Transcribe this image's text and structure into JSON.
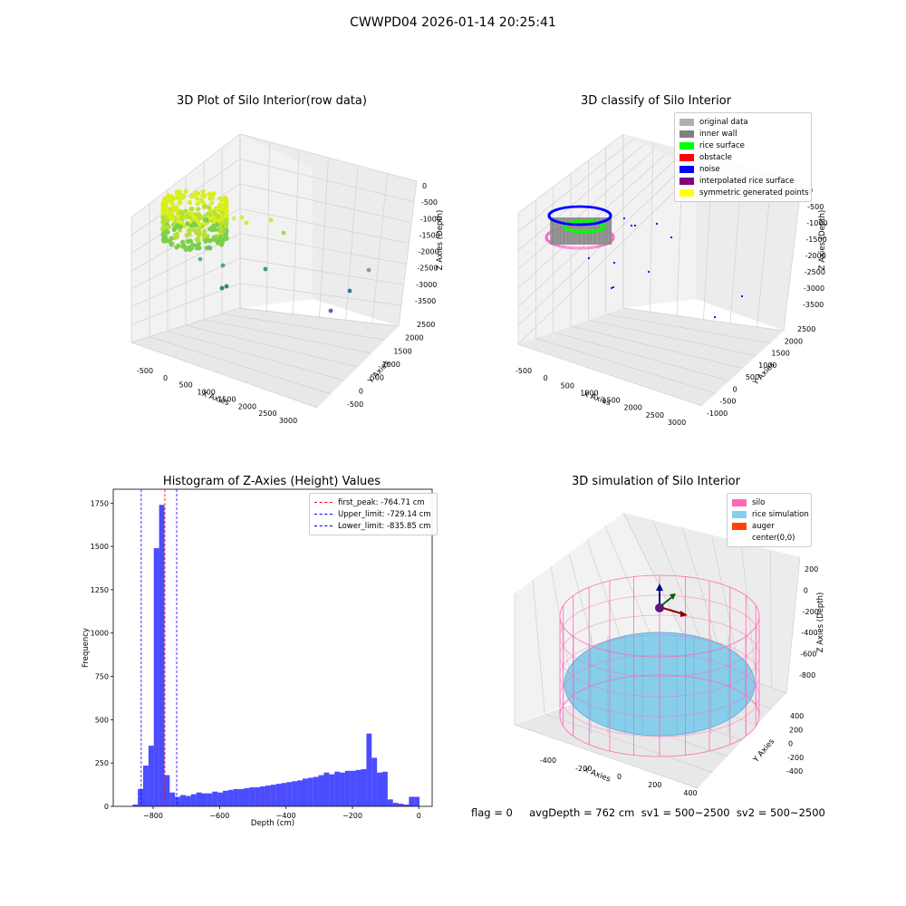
{
  "suptitle": "CWWPD04 2026-01-14 20:25:41",
  "plots": {
    "raw": {
      "title": "3D Plot of Silo Interior(row data)",
      "xlabel": "X Axies",
      "ylabel": "Y Axies",
      "zlabel": "Z Axies (Depth)",
      "xticks": [
        "-500",
        "0",
        "500",
        "1000",
        "1500",
        "2000",
        "2500",
        "3000"
      ],
      "yticks": [
        "-500",
        "0",
        "500",
        "1000",
        "1500",
        "2000",
        "2500"
      ],
      "zticks": [
        "0",
        "-500",
        "-1000",
        "-1500",
        "-2000",
        "-2500",
        "-3000",
        "-3500"
      ]
    },
    "classify": {
      "title": "3D classify of Silo Interior",
      "xlabel": "X Axies",
      "ylabel": "Y Axies",
      "zlabel": "Z Axies (Depth)",
      "xticks": [
        "-500",
        "0",
        "500",
        "1000",
        "1500",
        "2000",
        "2500",
        "3000"
      ],
      "yticks": [
        "-1000",
        "-500",
        "0",
        "500",
        "1000",
        "1500",
        "2000",
        "2500"
      ],
      "zticks": [
        "0",
        "-500",
        "-1000",
        "-1500",
        "-2000",
        "-2500",
        "-3000",
        "-3500"
      ],
      "legend": [
        {
          "label": "original data",
          "color": "#b0b0b0"
        },
        {
          "label": "inner wall",
          "color": "#808080"
        },
        {
          "label": "rice surface",
          "color": "#00ff00"
        },
        {
          "label": "obstacle",
          "color": "#ff0000"
        },
        {
          "label": "noise",
          "color": "#0000ff"
        },
        {
          "label": "interpolated rice surface",
          "color": "#800080"
        },
        {
          "label": "symmetric generated points",
          "color": "#ffff00"
        }
      ]
    },
    "simulation": {
      "title": "3D simulation of Silo Interior",
      "xlabel": "X Axies",
      "ylabel": "Y Axies",
      "zlabel": "Z Axies (Depth)",
      "xticks": [
        "-400",
        "-200",
        "0",
        "200",
        "400"
      ],
      "yticks": [
        "-400",
        "-200",
        "0",
        "200",
        "400"
      ],
      "zticks": [
        "200",
        "0",
        "-200",
        "-400",
        "-600",
        "-800"
      ],
      "legend": [
        {
          "label": "silo",
          "color": "#ff69b4"
        },
        {
          "label": "rice simulation",
          "color": "#87ceeb"
        },
        {
          "label": "auger",
          "color": "#ff4500"
        },
        {
          "label": "center(0,0)",
          "color": "#ffffff"
        }
      ]
    }
  },
  "chart_data": {
    "type": "bar",
    "title": "Histogram of Z-Axies (Height) Values",
    "xlabel": "Depth (cm)",
    "ylabel": "Frequency",
    "xlim": [
      -920,
      40
    ],
    "ylim": [
      0,
      1830
    ],
    "xticks": [
      -800,
      -600,
      -400,
      -200,
      0
    ],
    "yticks": [
      0,
      250,
      500,
      750,
      1000,
      1250,
      1500,
      1750
    ],
    "bar_color": "#0000ff",
    "bin_width": 16,
    "bins": [
      [
        -862,
        10
      ],
      [
        -846,
        100
      ],
      [
        -830,
        235
      ],
      [
        -814,
        350
      ],
      [
        -798,
        1490
      ],
      [
        -782,
        1740
      ],
      [
        -766,
        180
      ],
      [
        -750,
        80
      ],
      [
        -734,
        55
      ],
      [
        -718,
        65
      ],
      [
        -702,
        60
      ],
      [
        -686,
        70
      ],
      [
        -670,
        80
      ],
      [
        -654,
        75
      ],
      [
        -638,
        75
      ],
      [
        -622,
        85
      ],
      [
        -606,
        80
      ],
      [
        -590,
        90
      ],
      [
        -574,
        95
      ],
      [
        -558,
        100
      ],
      [
        -542,
        100
      ],
      [
        -526,
        105
      ],
      [
        -510,
        110
      ],
      [
        -494,
        110
      ],
      [
        -478,
        115
      ],
      [
        -462,
        120
      ],
      [
        -446,
        125
      ],
      [
        -430,
        130
      ],
      [
        -414,
        135
      ],
      [
        -398,
        140
      ],
      [
        -382,
        145
      ],
      [
        -366,
        150
      ],
      [
        -350,
        160
      ],
      [
        -334,
        165
      ],
      [
        -318,
        170
      ],
      [
        -302,
        180
      ],
      [
        -286,
        195
      ],
      [
        -270,
        185
      ],
      [
        -254,
        200
      ],
      [
        -238,
        195
      ],
      [
        -222,
        205
      ],
      [
        -206,
        205
      ],
      [
        -190,
        210
      ],
      [
        -174,
        215
      ],
      [
        -158,
        420
      ],
      [
        -142,
        280
      ],
      [
        -126,
        195
      ],
      [
        -110,
        200
      ],
      [
        -94,
        40
      ],
      [
        -78,
        20
      ],
      [
        -62,
        15
      ],
      [
        -46,
        10
      ],
      [
        -30,
        55
      ],
      [
        -14,
        55
      ]
    ],
    "vlines": [
      {
        "name": "first_peak: -764.71 cm",
        "x": -764.71,
        "color": "#ff0000"
      },
      {
        "name": "Upper_limit: -729.14 cm",
        "x": -729.14,
        "color": "#0000ff"
      },
      {
        "name": "Lower_limit: -835.85 cm",
        "x": -835.85,
        "color": "#0000ff"
      }
    ],
    "legend_position": "top-right"
  },
  "footer": "flag = 0     avgDepth = 762 cm  sv1 = 500~2500  sv2 = 500~2500"
}
